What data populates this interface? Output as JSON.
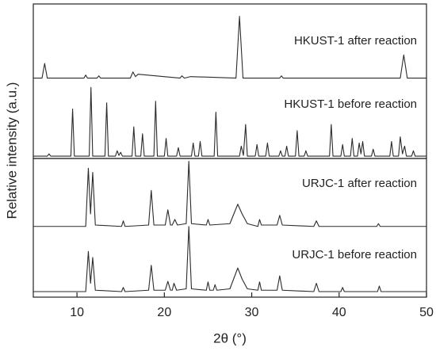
{
  "chart_data": [
    {
      "type": "line",
      "ylabel": "Relative intensity (a.u.)",
      "xlim": [
        5,
        50
      ],
      "ylim": [
        0,
        100
      ],
      "series": [
        {
          "name": "HKUST-1 after reaction",
          "color": "#2b2b2b",
          "x": [
            5,
            6.0,
            6.3,
            6.6,
            10.8,
            11.0,
            11.2,
            12.3,
            12.5,
            12.7,
            16.1,
            16.4,
            16.7,
            17.0,
            21.8,
            22.0,
            22.3,
            23.0,
            28.2,
            28.6,
            29.0,
            33.2,
            33.4,
            33.6,
            47.0,
            47.4,
            47.8,
            50
          ],
          "values": [
            52,
            52,
            61.5,
            52,
            52,
            54,
            52,
            52,
            53.5,
            52,
            52,
            56,
            53,
            54.5,
            52,
            53.5,
            52,
            53,
            52,
            92,
            52,
            52,
            53.5,
            52,
            52,
            67,
            52,
            52
          ]
        },
        {
          "name": "HKUST-1 before reaction",
          "color": "#2b2b2b",
          "x": [
            5,
            6.6,
            6.8,
            7.0,
            9.3,
            9.5,
            9.7,
            11.4,
            11.6,
            11.8,
            13.2,
            13.4,
            13.6,
            14.4,
            14.6,
            14.8,
            15.0,
            15.2,
            16.3,
            16.5,
            16.7,
            17.3,
            17.5,
            17.7,
            18.8,
            19.0,
            19.2,
            20.0,
            20.2,
            20.4,
            21.4,
            21.6,
            21.8,
            23.1,
            23.3,
            23.5,
            23.9,
            24.1,
            24.3,
            25.7,
            25.9,
            26.1,
            28.6,
            28.8,
            29.05,
            29.3,
            29.5,
            30.4,
            30.6,
            30.8,
            31.6,
            31.8,
            32.0,
            33.1,
            33.3,
            33.5,
            33.8,
            34.0,
            34.2,
            35.0,
            35.2,
            35.4,
            36.0,
            36.2,
            36.4,
            38.9,
            39.1,
            39.3,
            40.2,
            40.4,
            40.6,
            41.3,
            41.5,
            41.7,
            42.1,
            42.3,
            42.5,
            42.7,
            42.9,
            43.7,
            43.9,
            44.1,
            45.8,
            46.0,
            46.2,
            46.8,
            47.0,
            47.25,
            47.5,
            47.7,
            48.3,
            48.5,
            48.7,
            50
          ],
          "values": [
            1.5,
            1.5,
            3,
            1.5,
            1.5,
            32,
            1.5,
            1.5,
            46,
            1.5,
            1.5,
            36,
            1.5,
            1.5,
            5,
            2,
            4,
            1.5,
            1.5,
            20.5,
            1.5,
            1.5,
            16,
            1.5,
            1.5,
            37,
            1.5,
            1.5,
            13,
            1.5,
            1.5,
            7,
            1.5,
            1.5,
            10,
            1.5,
            1.5,
            11,
            1.5,
            1.5,
            30,
            1.5,
            1.5,
            8,
            2,
            22,
            1.5,
            1.5,
            9,
            1.5,
            1.5,
            10,
            1.5,
            1.5,
            5,
            1.5,
            1.5,
            8,
            1.5,
            1.5,
            18,
            1.5,
            1.5,
            5,
            1.5,
            1.5,
            22,
            1.5,
            1.5,
            9,
            1.5,
            1.5,
            13,
            1.5,
            1.5,
            10,
            3,
            11,
            1.5,
            1.5,
            6,
            1.5,
            1.5,
            11,
            1.5,
            1.5,
            14,
            3,
            8,
            1.5,
            1.5,
            5,
            1.5,
            1.5
          ]
        }
      ]
    },
    {
      "type": "line",
      "xlabel": "2θ (°)",
      "xlim": [
        5,
        50
      ],
      "ylim": [
        0,
        100
      ],
      "xticks": [
        10,
        20,
        30,
        40,
        50
      ],
      "series": [
        {
          "name": "URJC-1 after reaction",
          "color": "#2b2b2b",
          "x": [
            5,
            11.0,
            11.3,
            11.55,
            11.8,
            12.1,
            15.1,
            15.3,
            15.5,
            18.2,
            18.5,
            18.8,
            20.1,
            20.4,
            20.7,
            20.9,
            21.2,
            21.5,
            22.5,
            22.8,
            23.1,
            24.8,
            25.0,
            25.2,
            27.5,
            28.4,
            28.9,
            29.5,
            30.7,
            30.9,
            31.1,
            32.9,
            33.2,
            33.5,
            37.1,
            37.4,
            37.7,
            44.3,
            44.5,
            44.7,
            50
          ],
          "values": [
            51,
            51,
            93,
            60,
            90,
            52,
            51,
            55,
            51,
            52,
            77,
            52,
            52,
            63,
            52,
            52,
            56,
            52,
            53,
            98,
            53,
            52,
            56,
            52,
            53,
            67,
            60,
            53,
            51,
            56,
            52,
            52,
            59,
            52,
            51,
            55,
            51,
            51,
            53,
            51,
            51
          ]
        },
        {
          "name": "URJC-1 before reaction",
          "color": "#2b2b2b",
          "x": [
            5,
            11.0,
            11.3,
            11.55,
            11.8,
            12.1,
            15.1,
            15.3,
            15.5,
            18.2,
            18.5,
            18.8,
            20.1,
            20.4,
            20.7,
            20.9,
            21.1,
            21.4,
            22.5,
            22.8,
            23.1,
            24.8,
            25.0,
            25.2,
            25.6,
            25.8,
            26.0,
            27.5,
            28.4,
            28.9,
            29.5,
            30.7,
            30.9,
            31.1,
            32.9,
            33.2,
            33.5,
            37.1,
            37.4,
            37.7,
            40.2,
            40.4,
            40.6,
            44.4,
            44.6,
            44.8,
            50
          ],
          "values": [
            4,
            4,
            33,
            10,
            28.6,
            5,
            4,
            7,
            4,
            5,
            23,
            5,
            5,
            11.4,
            5,
            5,
            10,
            5,
            6,
            51,
            6,
            5,
            11,
            5,
            5,
            9,
            5,
            6,
            21,
            13,
            6,
            5,
            11,
            5,
            5,
            15.4,
            5,
            4,
            10,
            4,
            4,
            7,
            4,
            4,
            8,
            4,
            4
          ]
        }
      ]
    }
  ]
}
